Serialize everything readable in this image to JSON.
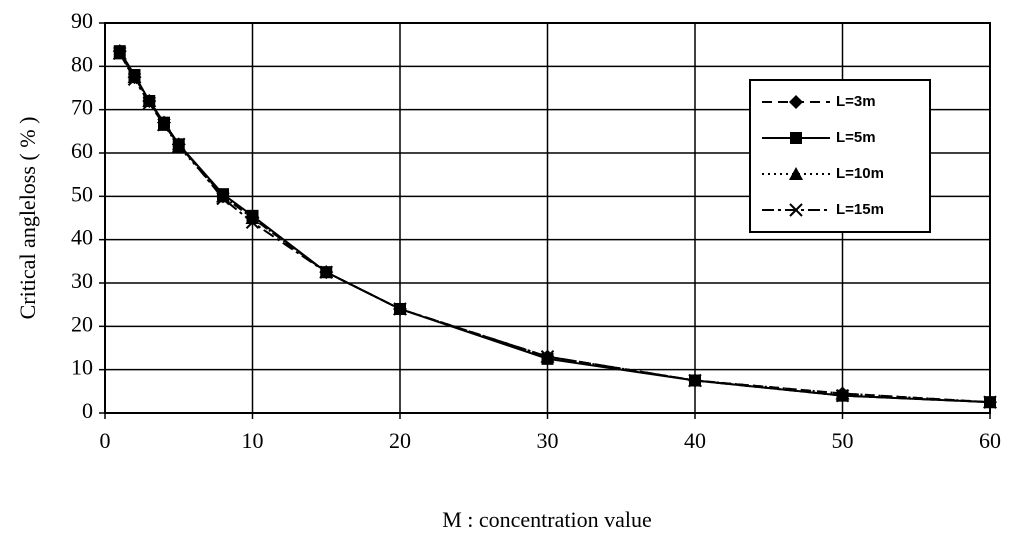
{
  "chart_data": {
    "type": "line",
    "xlabel": "M : concentration value",
    "ylabel": "Critical angleloss (  %  )",
    "x": [
      1,
      2,
      3,
      4,
      5,
      8,
      10,
      15,
      20,
      30,
      40,
      50,
      60
    ],
    "series": [
      {
        "name": "L=3m",
        "color": "#000000",
        "marker": "diamond",
        "linestyle": "dashed",
        "values": [
          83.5,
          77.5,
          72,
          67,
          62,
          50,
          45,
          32.5,
          24,
          13,
          7.5,
          4.5,
          2.5
        ]
      },
      {
        "name": "L=5m",
        "color": "#000000",
        "marker": "square",
        "linestyle": "solid",
        "values": [
          83.5,
          78,
          72,
          67,
          62,
          50.5,
          45.5,
          32.5,
          24,
          12.5,
          7.5,
          4,
          2.5
        ]
      },
      {
        "name": "L=10m",
        "color": "#000000",
        "marker": "triangle",
        "linestyle": "dotted",
        "values": [
          83,
          77.5,
          72,
          66.5,
          61.5,
          50,
          45,
          32.5,
          24,
          13,
          7.5,
          4.5,
          2.5
        ]
      },
      {
        "name": "L=15m",
        "color": "#000000",
        "marker": "x",
        "linestyle": "dashdot",
        "values": [
          83,
          77,
          71.5,
          66.5,
          62,
          49.5,
          44,
          32.5,
          24,
          13,
          7.5,
          4,
          2.5
        ]
      }
    ],
    "xlim": [
      0,
      60
    ],
    "xticks": [
      0,
      10,
      20,
      30,
      40,
      50,
      60
    ],
    "ylim": [
      0,
      90
    ],
    "yticks": [
      0,
      10,
      20,
      30,
      40,
      50,
      60,
      70,
      80,
      90
    ],
    "grid": true,
    "legend": "upper right"
  }
}
